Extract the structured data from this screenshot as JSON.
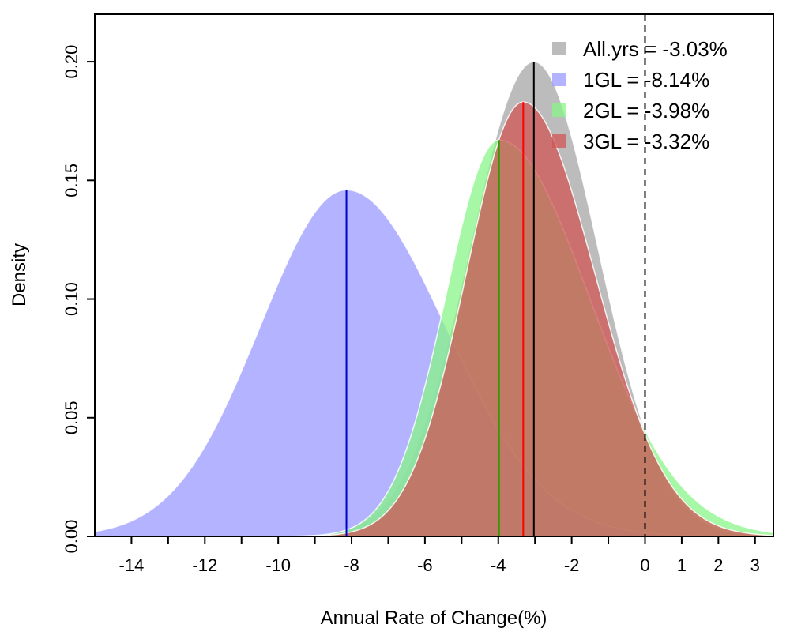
{
  "chart_data": {
    "type": "area",
    "title": "",
    "xlabel": "Annual Rate of Change(%)",
    "ylabel": "Density",
    "xlim": [
      -15,
      3.5
    ],
    "ylim": [
      0,
      0.22
    ],
    "x_ticks": [
      -14,
      -13,
      -12,
      -11,
      -10,
      -9,
      -8,
      -7,
      -6,
      -5,
      -4,
      -3,
      -2,
      -1,
      0,
      1,
      2,
      3
    ],
    "x_tick_labels": [
      "-14",
      "",
      "-12",
      "",
      "-10",
      "",
      "-8",
      "",
      "-6",
      "",
      "-4",
      "",
      "-2",
      "",
      "0",
      "1",
      "2",
      "3"
    ],
    "y_ticks": [
      0,
      0.05,
      0.1,
      0.15,
      0.2
    ],
    "y_tick_labels": [
      "0.00",
      "0.05",
      "0.10",
      "0.15",
      "0.20"
    ],
    "reference_line": {
      "x": 0,
      "style": "dashed",
      "color": "#000000"
    },
    "legend_position": "top-right",
    "series": [
      {
        "name": "All.yrs",
        "legend": "All.yrs = -3.03%",
        "mean": -3.03,
        "peak": 0.2,
        "sd_left": 1.75,
        "sd_right": 1.75,
        "fill": "#a6a6a6",
        "line_color": "#000000"
      },
      {
        "name": "1GL",
        "legend": "1GL = -8.14%",
        "mean": -8.14,
        "peak": 0.146,
        "sd_left": 2.35,
        "sd_right": 2.7,
        "fill": "#9999ff",
        "line_color": "#0000cc"
      },
      {
        "name": "2GL",
        "legend": "2GL = -3.98%",
        "mean": -3.98,
        "peak": 0.167,
        "sd_left": 1.45,
        "sd_right": 2.45,
        "fill": "#88f588",
        "line_color": "#339900"
      },
      {
        "name": "3GL",
        "legend": "3GL = -3.32%",
        "mean": -3.32,
        "peak": 0.183,
        "sd_left": 1.55,
        "sd_right": 1.95,
        "fill": "#d05555",
        "line_color": "#ff0000"
      }
    ]
  }
}
